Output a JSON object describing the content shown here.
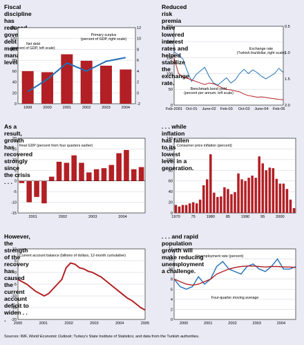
{
  "source": {
    "prefix": "Sources: IMF, ",
    "italic": "World Economic Outlook",
    "suffix": "; Turkey's State Institute of Statistics; and data from the Turkish authorities."
  },
  "charts": [
    {
      "title_lines": [
        "Fiscal discipline has reduced government debt to",
        "more manageable levels."
      ],
      "chart_data": {
        "type": "bar",
        "categories": [
          "1999",
          "2000",
          "2001",
          "2002",
          "2003",
          "2004"
        ],
        "values": [
          60,
          58,
          91,
          79,
          70,
          63
        ],
        "ylim": [
          0,
          140
        ],
        "ylim_right": [
          -2,
          12
        ],
        "yticks": [
          "0",
          "20",
          "40",
          "60",
          "80",
          "100",
          "120",
          "140"
        ],
        "yticks_right": [
          "-2",
          "0",
          "2",
          "4",
          "6",
          "8",
          "10",
          "12"
        ],
        "line_right": [
          0.2,
          2.5,
          5.5,
          4.0,
          5.8,
          6.5
        ],
        "annotations": [
          [
            "Net debt",
            "(percent of GDP, left scale)"
          ],
          [
            "Primary surplus",
            "(percent of GDP, right scale)"
          ]
        ],
        "bar_color": "#b21f24",
        "line_color": "#1f6fb5"
      }
    },
    {
      "title_lines": [
        "Reduced risk premia have lowered interest rates and",
        "helped stabilize the exchange rate."
      ],
      "chart_data": {
        "type": "line",
        "x": [
          "Feb-01",
          "Apr-01",
          "Jun-01",
          "Aug-01",
          "Oct-01",
          "Dec-01",
          "Feb-02",
          "Apr-02",
          "Jun-02",
          "Aug-02",
          "Oct-02",
          "Dec-02",
          "Feb-03",
          "Apr-03",
          "Jun-03",
          "Aug-03",
          "Oct-03",
          "Dec-03",
          "Feb-04",
          "Apr-04",
          "Jun-04",
          "Aug-04",
          "Oct-04",
          "Dec-04",
          "Feb-05",
          "Apr-05"
        ],
        "xticks": [
          "Feb-2001",
          "Oct-01",
          "June-02",
          "Feb-03",
          "Oct-03",
          "June-04",
          "Feb-05"
        ],
        "ylim": [
          0,
          250
        ],
        "yticks": [
          "0",
          "50",
          "100",
          "150",
          "200",
          "250"
        ],
        "ylim_right": [
          2.0,
          0.5
        ],
        "yticks_right": [
          "0.5",
          "1.0",
          "1.5",
          "2.0"
        ],
        "series": [
          {
            "name": "Exchange rate (Turkish lira/dollar, right scale)",
            "color": "#1f6fb5",
            "axis": "right",
            "values": [
              0.98,
              1.05,
              1.12,
              1.35,
              1.55,
              1.42,
              1.35,
              1.28,
              1.45,
              1.58,
              1.62,
              1.55,
              1.48,
              1.58,
              1.52,
              1.4,
              1.32,
              1.4,
              1.33,
              1.38,
              1.45,
              1.5,
              1.45,
              1.4,
              1.3,
              1.38
            ]
          },
          {
            "name": "Benchmark bond yield (percent per annum, left scale)",
            "color": "#b21f24",
            "axis": "left",
            "values": [
              150,
              100,
              90,
              85,
              80,
              75,
              70,
              65,
              70,
              68,
              62,
              55,
              50,
              48,
              45,
              42,
              35,
              30,
              28,
              25,
              26,
              24,
              22,
              20,
              18,
              17
            ]
          }
        ],
        "annotations": [
          [
            "Exchange rate",
            "(Turkish lira/dollar, right scale)"
          ],
          [
            "Benchmark bond yield",
            "(percent per annum, left scale)"
          ]
        ]
      }
    },
    {
      "title_lines": [
        "As a result, growth has recovered strongly since",
        "the crisis . . ."
      ],
      "chart_data": {
        "type": "bar",
        "label": "Real GDP (percent from four quarters earlier)",
        "values": [
          -1,
          -10,
          -7.5,
          -10.5,
          2,
          9,
          8.5,
          12,
          8.5,
          4,
          5.5,
          6,
          7.5,
          13,
          14.5,
          5.5,
          6.5
        ],
        "ylim": [
          -15,
          20
        ],
        "yticks": [
          "-15",
          "-10",
          "-5",
          "0",
          "5",
          "10",
          "15",
          "20"
        ],
        "xticks": [
          "2001",
          "2002",
          "2003",
          "2004"
        ],
        "bar_color": "#b21f24"
      }
    },
    {
      "title_lines": [
        ". . . while inflation has fallen to its lowest",
        "level in a generation."
      ],
      "chart_data": {
        "type": "bar",
        "label": "Consumer price inflation (percent)",
        "years": [
          1970,
          1971,
          1972,
          1973,
          1974,
          1975,
          1976,
          1977,
          1978,
          1979,
          1980,
          1981,
          1982,
          1983,
          1984,
          1985,
          1986,
          1987,
          1988,
          1989,
          1990,
          1991,
          1992,
          1993,
          1994,
          1995,
          1996,
          1997,
          1998,
          1999,
          2000,
          2001,
          2002,
          2003,
          2004
        ],
        "values": [
          15,
          12,
          15,
          15,
          18,
          20,
          18,
          25,
          52,
          63,
          110,
          38,
          30,
          31,
          48,
          45,
          35,
          39,
          74,
          63,
          60,
          66,
          70,
          66,
          106,
          93,
          80,
          85,
          84,
          64,
          55,
          55,
          45,
          25,
          9
        ],
        "ylim": [
          0,
          140
        ],
        "yticks": [
          "0",
          "20",
          "40",
          "60",
          "80",
          "100",
          "120",
          "140"
        ],
        "xticks": [
          "1970",
          "1980",
          "1990",
          "2000"
        ],
        "xtick_years": [
          1970,
          1980,
          1990,
          2000
        ],
        "extra_x_labels": [
          "75",
          "85",
          "95"
        ],
        "extra_x_years": [
          1975,
          1985,
          1995
        ],
        "bar_color": "#b21f24"
      }
    },
    {
      "title_lines": [
        "However, the strength of the recovery has caused",
        "the current account deficit to widen . . ."
      ],
      "chart_data": {
        "type": "line",
        "label": "Current account balance (billions of dollars, 12-month cumulative)",
        "values": [
          -3,
          -4,
          -5,
          -6.5,
          -8,
          -9,
          -10,
          -9,
          -7,
          -5,
          -3,
          2,
          4,
          3.5,
          2,
          1.5,
          0.5,
          0,
          -1,
          -2,
          -3.5,
          -5,
          -6.5,
          -8,
          -9.5,
          -11,
          -12,
          -13.5,
          -15,
          -16
        ],
        "ylim": [
          -20,
          10
        ],
        "yticks": [
          "-20",
          "-15",
          "-10",
          "-5",
          "0",
          "5",
          "10"
        ],
        "xticks": [
          "2000",
          "2001",
          "2002",
          "2003",
          "2004",
          "2005"
        ],
        "line_color": "#b21f24"
      }
    },
    {
      "title_lines": [
        ". . . and rapid population growth will make reducing",
        "unemployment a challenge."
      ],
      "chart_data": {
        "type": "line",
        "ylim": [
          0,
          14
        ],
        "yticks": [
          "0",
          "2",
          "4",
          "6",
          "8",
          "10",
          "12",
          "14"
        ],
        "xticks": [
          "2000",
          "2001",
          "2002",
          "2003",
          "2004"
        ],
        "series": [
          {
            "name": "Unemployment rate (percent)",
            "color": "#1f6fb5",
            "values": [
              8,
              6.5,
              6,
              6.5,
              8.5,
              7,
              8,
              10.5,
              11.5,
              10,
              9.5,
              9,
              10.5,
              11,
              10,
              9.5,
              10.5,
              12,
              10,
              10,
              10.5
            ]
          },
          {
            "name": "Four-quarter moving average",
            "color": "#b21f24",
            "values": [
              8,
              7.5,
              7,
              6.8,
              7,
              7.5,
              8,
              9,
              9.5,
              10,
              10.3,
              10.5,
              10.6,
              10.6,
              10.5,
              10.4,
              10.5,
              10.5,
              10.4,
              10.4,
              10.3
            ]
          }
        ],
        "annotations": [
          "Unemployment rate (percent)",
          "Four-quarter moving average"
        ]
      }
    }
  ]
}
